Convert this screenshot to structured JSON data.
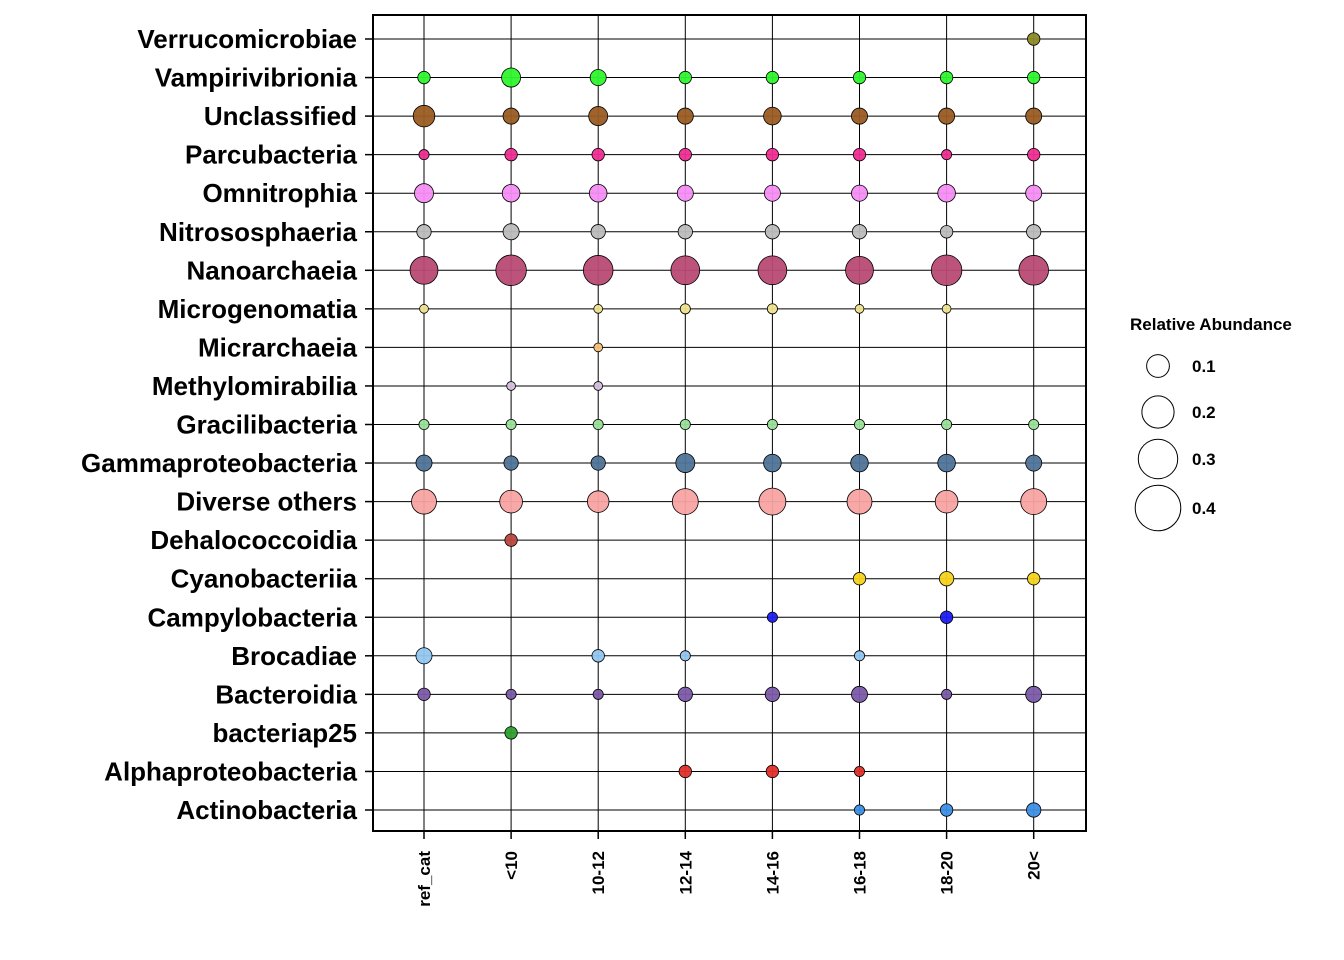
{
  "chart_data": {
    "type": "bubble",
    "title": "",
    "xlabel": "",
    "ylabel": "",
    "categories": [
      "ref_cat",
      "<10",
      "10-12",
      "12-14",
      "14-16",
      "16-18",
      "18-20",
      "20<"
    ],
    "taxa": [
      "Actinobacteria",
      "Alphaproteobacteria",
      "bacteriap25",
      "Bacteroidia",
      "Brocadiae",
      "Campylobacteria",
      "Cyanobacteriia",
      "Dehalococcoidia",
      "Diverse others",
      "Gammaproteobacteria",
      "Gracilibacteria",
      "Methylomirabilia",
      "Micrarchaeia",
      "Microgenomatia",
      "Nanoarchaeia",
      "Nitrososphaeria",
      "Omnitrophia",
      "Parcubacteria",
      "Unclassified",
      "Vampirivibrionia",
      "Verrucomicrobiae"
    ],
    "colors": {
      "Actinobacteria": "#3d8fe6",
      "Alphaproteobacteria": "#e0302a",
      "bacteriap25": "#2ea02e",
      "Bacteroidia": "#7b5aa8",
      "Brocadiae": "#92c6ef",
      "Campylobacteria": "#1e1ef5",
      "Cyanobacteriia": "#f5d21c",
      "Dehalococcoidia": "#b9483f",
      "Diverse others": "#f7a3a2",
      "Gammaproteobacteria": "#4f7397",
      "Gracilibacteria": "#98e298",
      "Methylomirabilia": "#d6bfe0",
      "Micrarchaeia": "#f5c27a",
      "Microgenomatia": "#efe38f",
      "Nanoarchaeia": "#b84a74",
      "Nitrososphaeria": "#bcbcbc",
      "Omnitrophia": "#f58ef5",
      "Parcubacteria": "#ee2d91",
      "Unclassified": "#9a5c22",
      "Vampirivibrionia": "#2ef52e",
      "Verrucomicrobiae": "#8d8a26"
    },
    "values": {
      "Actinobacteria": [
        null,
        null,
        null,
        null,
        null,
        0.02,
        0.03,
        0.04
      ],
      "Alphaproteobacteria": [
        null,
        null,
        null,
        0.03,
        0.03,
        0.02,
        null,
        null
      ],
      "bacteriap25": [
        null,
        0.03,
        null,
        null,
        null,
        null,
        null,
        null
      ],
      "Bacteroidia": [
        0.03,
        0.02,
        0.02,
        0.04,
        0.04,
        0.05,
        0.02,
        0.05
      ],
      "Brocadiae": [
        0.05,
        null,
        0.03,
        0.02,
        null,
        0.02,
        null,
        null
      ],
      "Campylobacteria": [
        null,
        null,
        null,
        null,
        0.02,
        null,
        0.03,
        null
      ],
      "Cyanobacteriia": [
        null,
        null,
        null,
        null,
        null,
        0.03,
        0.04,
        0.03
      ],
      "Dehalococcoidia": [
        null,
        0.03,
        null,
        null,
        null,
        null,
        null,
        null
      ],
      "Diverse others": [
        0.12,
        0.1,
        0.09,
        0.13,
        0.14,
        0.12,
        0.1,
        0.13
      ],
      "Gammaproteobacteria": [
        0.05,
        0.04,
        0.04,
        0.07,
        0.06,
        0.06,
        0.06,
        0.05
      ],
      "Gracilibacteria": [
        0.02,
        0.02,
        0.02,
        0.02,
        0.02,
        0.02,
        0.02,
        0.02
      ],
      "Methylomirabilia": [
        null,
        0.015,
        0.015,
        null,
        null,
        null,
        null,
        null
      ],
      "Micrarchaeia": [
        null,
        null,
        0.015,
        null,
        null,
        null,
        null,
        null
      ],
      "Microgenomatia": [
        0.015,
        null,
        0.015,
        0.02,
        0.02,
        0.015,
        0.015,
        null
      ],
      "Nanoarchaeia": [
        0.15,
        0.18,
        0.17,
        0.16,
        0.16,
        0.15,
        0.18,
        0.17
      ],
      "Nitrososphaeria": [
        0.04,
        0.05,
        0.04,
        0.04,
        0.04,
        0.04,
        0.03,
        0.04
      ],
      "Omnitrophia": [
        0.07,
        0.06,
        0.06,
        0.05,
        0.05,
        0.05,
        0.06,
        0.05
      ],
      "Parcubacteria": [
        0.02,
        0.03,
        0.03,
        0.03,
        0.03,
        0.03,
        0.02,
        0.03
      ],
      "Unclassified": [
        0.09,
        0.05,
        0.07,
        0.05,
        0.06,
        0.05,
        0.05,
        0.05
      ],
      "Vampirivibrionia": [
        0.03,
        0.07,
        0.05,
        0.03,
        0.03,
        0.03,
        0.03,
        0.03
      ],
      "Verrucomicrobiae": [
        null,
        null,
        null,
        null,
        null,
        null,
        null,
        0.03
      ]
    },
    "legend": {
      "title": "Relative Abundance",
      "placement": "right",
      "entries": [
        {
          "label": "0.1",
          "value": 0.1
        },
        {
          "label": "0.2",
          "value": 0.2
        },
        {
          "label": "0.3",
          "value": 0.3
        },
        {
          "label": "0.4",
          "value": 0.4
        }
      ]
    },
    "grid": true
  }
}
